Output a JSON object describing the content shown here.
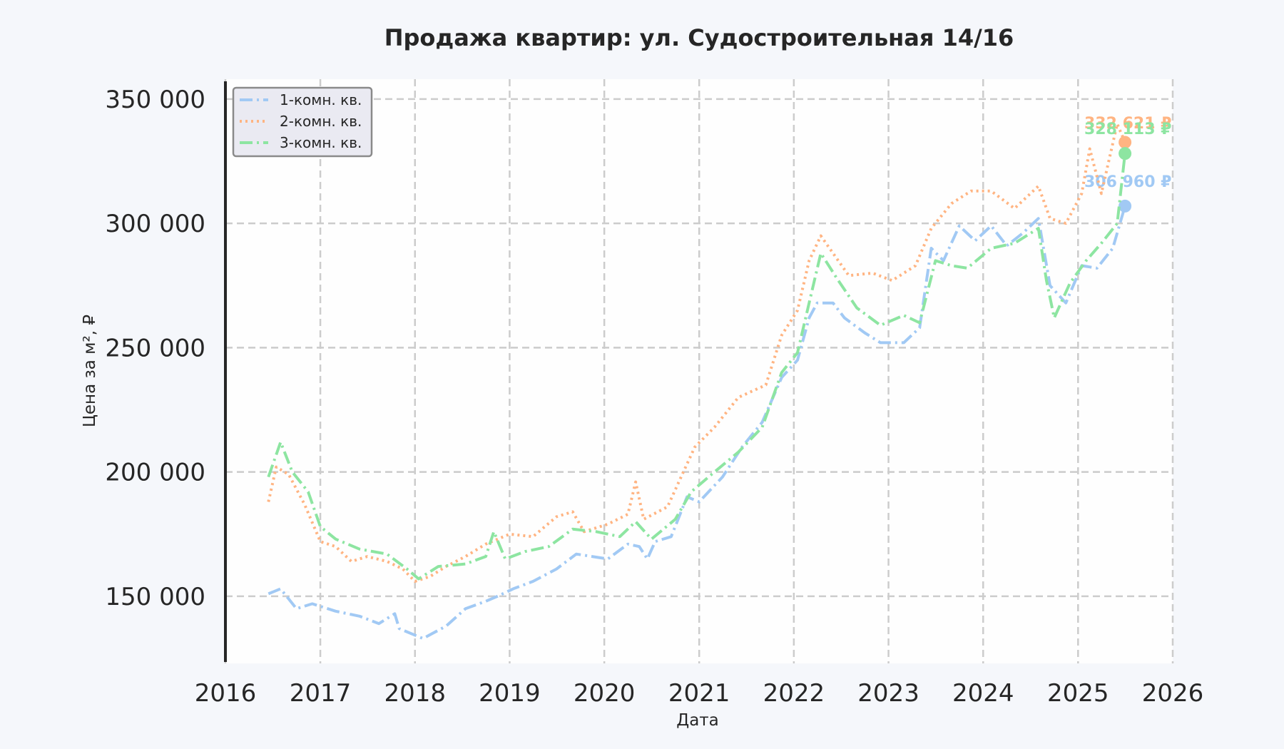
{
  "chart_data": {
    "type": "line",
    "title": "Продажа квартир: ул. Судостроительная 14/16",
    "xlabel": "Дата",
    "ylabel": "Цена за м², ₽",
    "xlim": [
      "2016-01-01",
      "2026-01-01"
    ],
    "ylim": [
      123000,
      358000
    ],
    "x_ticks": [
      "2016-01-01",
      "2017-01-01",
      "2018-01-01",
      "2019-01-01",
      "2020-01-01",
      "2021-01-01",
      "2022-01-01",
      "2023-01-01",
      "2024-01-01",
      "2025-01-01",
      "2026-01-01"
    ],
    "x_tick_labels": [
      "2016",
      "2017",
      "2018",
      "2019",
      "2020",
      "2021",
      "2022",
      "2023",
      "2024",
      "2025",
      "2026"
    ],
    "y_ticks": [
      150000,
      200000,
      250000,
      300000,
      350000
    ],
    "y_tick_labels": [
      "150 000",
      "200 000",
      "250 000",
      "300 000",
      "350 000"
    ],
    "grid": true,
    "legend_position": "top-left",
    "series": [
      {
        "name": "1-комн. кв.",
        "color": "#a1c9f4",
        "dash": "dashdot",
        "end_label": "306 960 ₽",
        "points": [
          [
            "2016-06-15",
            151000
          ],
          [
            "2016-08-01",
            153000
          ],
          [
            "2016-10-01",
            145000
          ],
          [
            "2016-12-01",
            147000
          ],
          [
            "2017-03-01",
            144000
          ],
          [
            "2017-06-01",
            142000
          ],
          [
            "2017-08-15",
            139000
          ],
          [
            "2017-10-15",
            143000
          ],
          [
            "2017-11-01",
            137000
          ],
          [
            "2018-02-01",
            133000
          ],
          [
            "2018-05-01",
            138000
          ],
          [
            "2018-07-15",
            145000
          ],
          [
            "2018-10-01",
            148000
          ],
          [
            "2018-11-15",
            150000
          ],
          [
            "2019-01-15",
            153000
          ],
          [
            "2019-04-01",
            156000
          ],
          [
            "2019-07-01",
            161000
          ],
          [
            "2019-09-15",
            167000
          ],
          [
            "2019-11-15",
            166000
          ],
          [
            "2020-01-15",
            165000
          ],
          [
            "2020-04-01",
            171000
          ],
          [
            "2020-05-15",
            170000
          ],
          [
            "2020-06-15",
            165000
          ],
          [
            "2020-07-15",
            172000
          ],
          [
            "2020-09-15",
            174000
          ],
          [
            "2020-11-15",
            190000
          ],
          [
            "2021-01-01",
            188000
          ],
          [
            "2021-04-01",
            198000
          ],
          [
            "2021-06-15",
            210000
          ],
          [
            "2021-09-01",
            220000
          ],
          [
            "2021-11-15",
            238000
          ],
          [
            "2022-01-15",
            245000
          ],
          [
            "2022-03-01",
            262000
          ],
          [
            "2022-04-01",
            268000
          ],
          [
            "2022-06-01",
            268000
          ],
          [
            "2022-07-15",
            262000
          ],
          [
            "2022-10-01",
            256000
          ],
          [
            "2022-12-01",
            252000
          ],
          [
            "2023-03-01",
            252000
          ],
          [
            "2023-05-01",
            258000
          ],
          [
            "2023-06-15",
            290000
          ],
          [
            "2023-08-01",
            285000
          ],
          [
            "2023-10-01",
            299000
          ],
          [
            "2023-12-01",
            293000
          ],
          [
            "2024-02-01",
            299000
          ],
          [
            "2024-04-01",
            291000
          ],
          [
            "2024-06-01",
            296000
          ],
          [
            "2024-08-01",
            302000
          ],
          [
            "2024-09-15",
            275000
          ],
          [
            "2024-11-15",
            268000
          ],
          [
            "2025-01-15",
            283000
          ],
          [
            "2025-03-15",
            282000
          ],
          [
            "2025-05-15",
            290000
          ],
          [
            "2025-07-01",
            306960
          ]
        ]
      },
      {
        "name": "2-комн. кв.",
        "color": "#ffb482",
        "dash": "dotted",
        "end_label": "332 621 ₽",
        "points": [
          [
            "2016-06-15",
            188000
          ],
          [
            "2016-07-15",
            202000
          ],
          [
            "2016-09-01",
            199000
          ],
          [
            "2016-11-01",
            187000
          ],
          [
            "2017-01-01",
            172000
          ],
          [
            "2017-03-01",
            170000
          ],
          [
            "2017-05-01",
            164000
          ],
          [
            "2017-07-01",
            166000
          ],
          [
            "2017-09-15",
            164000
          ],
          [
            "2017-11-15",
            161000
          ],
          [
            "2018-01-01",
            156000
          ],
          [
            "2018-03-01",
            158000
          ],
          [
            "2018-05-01",
            162000
          ],
          [
            "2018-07-15",
            166000
          ],
          [
            "2018-10-01",
            171000
          ],
          [
            "2019-01-01",
            175000
          ],
          [
            "2019-04-01",
            174000
          ],
          [
            "2019-07-01",
            182000
          ],
          [
            "2019-09-01",
            184000
          ],
          [
            "2019-10-15",
            176000
          ],
          [
            "2020-01-15",
            179000
          ],
          [
            "2020-04-01",
            183000
          ],
          [
            "2020-05-01",
            196000
          ],
          [
            "2020-06-01",
            181000
          ],
          [
            "2020-09-01",
            186000
          ],
          [
            "2020-11-01",
            200000
          ],
          [
            "2020-12-15",
            210000
          ],
          [
            "2021-03-01",
            218000
          ],
          [
            "2021-06-01",
            230000
          ],
          [
            "2021-09-15",
            235000
          ],
          [
            "2021-11-15",
            255000
          ],
          [
            "2022-01-15",
            265000
          ],
          [
            "2022-03-01",
            285000
          ],
          [
            "2022-04-15",
            295000
          ],
          [
            "2022-06-01",
            288000
          ],
          [
            "2022-08-01",
            279000
          ],
          [
            "2022-11-01",
            280000
          ],
          [
            "2023-01-15",
            277000
          ],
          [
            "2023-04-15",
            283000
          ],
          [
            "2023-06-15",
            298000
          ],
          [
            "2023-09-01",
            308000
          ],
          [
            "2023-11-15",
            313000
          ],
          [
            "2024-02-01",
            313000
          ],
          [
            "2024-05-01",
            306000
          ],
          [
            "2024-08-01",
            315000
          ],
          [
            "2024-09-15",
            302000
          ],
          [
            "2024-11-15",
            300000
          ],
          [
            "2025-01-15",
            312000
          ],
          [
            "2025-02-15",
            330000
          ],
          [
            "2025-04-01",
            312000
          ],
          [
            "2025-06-01",
            340000
          ],
          [
            "2025-07-01",
            332621
          ]
        ]
      },
      {
        "name": "3-комн. кв.",
        "color": "#8de5a1",
        "dash": "dashdot",
        "end_label": "328 113 ₽",
        "points": [
          [
            "2016-06-15",
            198000
          ],
          [
            "2016-08-01",
            212000
          ],
          [
            "2016-09-15",
            200000
          ],
          [
            "2016-11-15",
            192000
          ],
          [
            "2017-01-01",
            178000
          ],
          [
            "2017-03-01",
            173000
          ],
          [
            "2017-06-01",
            169000
          ],
          [
            "2017-09-15",
            167000
          ],
          [
            "2017-12-01",
            161000
          ],
          [
            "2018-01-15",
            157000
          ],
          [
            "2018-04-01",
            162000
          ],
          [
            "2018-07-15",
            163000
          ],
          [
            "2018-10-01",
            166000
          ],
          [
            "2018-11-01",
            176000
          ],
          [
            "2018-12-15",
            165000
          ],
          [
            "2019-03-01",
            168000
          ],
          [
            "2019-06-01",
            170000
          ],
          [
            "2019-09-01",
            177000
          ],
          [
            "2019-12-01",
            176000
          ],
          [
            "2020-03-01",
            174000
          ],
          [
            "2020-05-01",
            180000
          ],
          [
            "2020-07-01",
            173000
          ],
          [
            "2020-10-01",
            181000
          ],
          [
            "2020-12-01",
            192000
          ],
          [
            "2021-03-01",
            200000
          ],
          [
            "2021-06-01",
            208000
          ],
          [
            "2021-09-01",
            218000
          ],
          [
            "2021-11-15",
            240000
          ],
          [
            "2022-01-15",
            248000
          ],
          [
            "2022-03-01",
            268000
          ],
          [
            "2022-04-15",
            288000
          ],
          [
            "2022-06-15",
            278000
          ],
          [
            "2022-09-01",
            266000
          ],
          [
            "2022-12-01",
            259000
          ],
          [
            "2023-03-01",
            263000
          ],
          [
            "2023-05-01",
            260000
          ],
          [
            "2023-07-01",
            285000
          ],
          [
            "2023-09-01",
            283000
          ],
          [
            "2023-11-01",
            282000
          ],
          [
            "2024-02-01",
            290000
          ],
          [
            "2024-05-01",
            292000
          ],
          [
            "2024-08-01",
            298000
          ],
          [
            "2024-09-01",
            277000
          ],
          [
            "2024-10-01",
            262000
          ],
          [
            "2024-12-01",
            276000
          ],
          [
            "2025-02-01",
            285000
          ],
          [
            "2025-04-01",
            292000
          ],
          [
            "2025-06-01",
            300000
          ],
          [
            "2025-07-01",
            328113
          ]
        ]
      }
    ]
  }
}
